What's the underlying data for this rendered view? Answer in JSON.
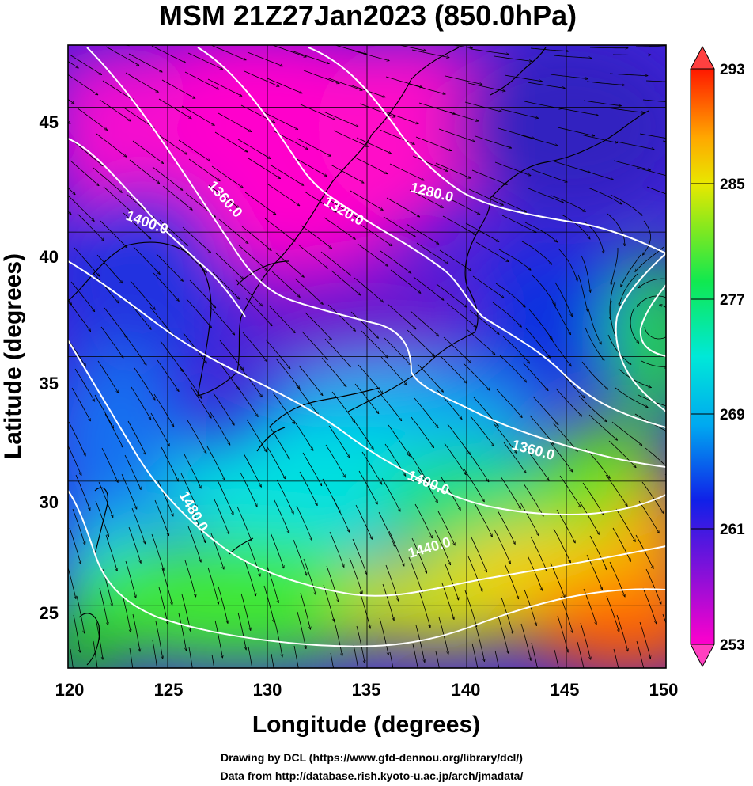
{
  "title": "MSM 21Z27Jan2023 (850.0hPa)",
  "x_axis": {
    "label": "Longitude (degrees)",
    "ticks": [
      "120",
      "125",
      "130",
      "135",
      "140",
      "145",
      "150"
    ]
  },
  "y_axis": {
    "label": "Latitude  (degrees)",
    "ticks": [
      "25",
      "30",
      "35",
      "40",
      "45"
    ]
  },
  "colorbar": {
    "labels": [
      "293",
      "285",
      "277",
      "269",
      "261",
      "253"
    ]
  },
  "contours": {
    "labels": [
      "1280.0",
      "1320.0",
      "1360.0",
      "1400.0",
      "1360.0",
      "1400.0",
      "1440.0",
      "1480.0"
    ]
  },
  "credits": {
    "line1": "Drawing by DCL (https://www.gfd-dennou.org/library/dcl/)",
    "line2": "Data from http://database.rish.kyoto-u.ac.jp/arch/jmadata/"
  },
  "colors": {
    "magenta": "#ff00cc",
    "purple": "#6a10d8",
    "blue": "#1030ee",
    "cyan": "#00e0e8",
    "green": "#20e030",
    "yellow": "#f0e000",
    "orange": "#ff6a00",
    "red": "#ff2000"
  },
  "map_data": {
    "type": "contour-map",
    "variable_colorbar_range": [
      253,
      293
    ],
    "lon_range": [
      120,
      150
    ],
    "lat_range": [
      22.5,
      47.5
    ],
    "contour_levels": [
      1280,
      1320,
      1360,
      1400,
      1440,
      1480
    ]
  }
}
